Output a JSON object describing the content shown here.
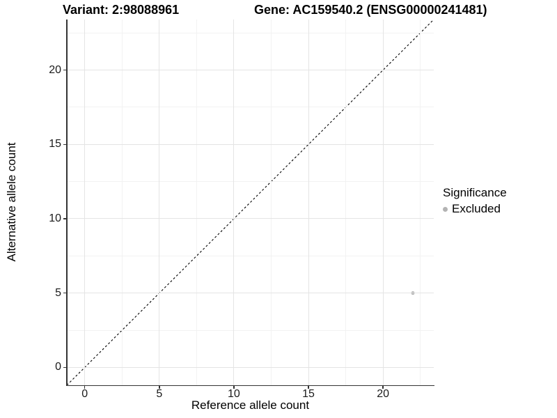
{
  "header": {
    "variant_title": "Variant: 2:98088961",
    "gene_title": "Gene: AC159540.2 (ENSG00000241481)"
  },
  "chart_data": {
    "type": "scatter",
    "title": "Variant: 2:98088961    Gene: AC159540.2 (ENSG00000241481)",
    "xlabel": "Reference allele count",
    "ylabel": "Alternative allele count",
    "xlim": [
      -1.2,
      23.4
    ],
    "ylim": [
      -1.2,
      23.4
    ],
    "x_ticks": [
      0,
      5,
      10,
      15,
      20
    ],
    "y_ticks": [
      0,
      5,
      10,
      15,
      20
    ],
    "x_minor_ticks": [
      2.5,
      7.5,
      12.5,
      17.5,
      22.5
    ],
    "y_minor_ticks": [
      2.5,
      7.5,
      12.5,
      17.5,
      22.5
    ],
    "grid": "major+minor",
    "reference_line": {
      "kind": "identity y=x",
      "style": "dashed",
      "color": "#000000",
      "from": [
        -1.2,
        -1.2
      ],
      "to": [
        23.4,
        23.4
      ]
    },
    "series": [
      {
        "name": "Excluded",
        "color": "#b3b3b3",
        "marker": "circle",
        "points": [
          {
            "x": 22,
            "y": 5
          }
        ]
      }
    ],
    "legend": {
      "title": "Significance",
      "position": "right",
      "items": [
        {
          "label": "Excluded",
          "color": "#b3b3b3",
          "marker": "circle"
        }
      ]
    }
  },
  "style": {
    "background": "#ffffff",
    "grid_major_color": "#e4e4e4",
    "grid_minor_color": "#f2f2f2",
    "axis_color": "#333333",
    "tick_label_color": "#1a1a1a",
    "point_color": "#b3b3b3",
    "dashed_line_color": "#000000"
  }
}
